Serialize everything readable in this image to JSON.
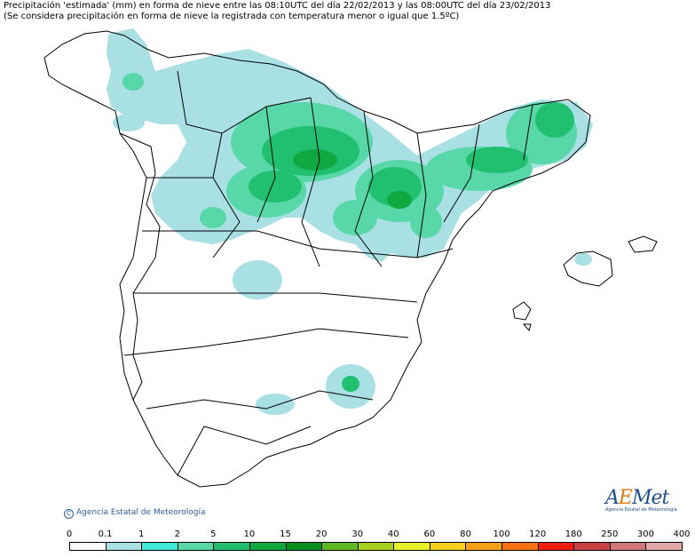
{
  "title": {
    "line1": "Precipitación 'estimada' (mm) en forma de nieve entre las 08:10UTC del día 22/02/2013 y las 08:00UTC del día 23/02/2013",
    "line2": "(Se considera precipitación en forma de nieve la registrada con temperatura menor o igual que 1.5ºC)"
  },
  "credit": "Agencia Estatal de Meteorología",
  "credit_symbol": "C",
  "logo": {
    "word_a": "A",
    "word_e": "E",
    "word_met": "Met",
    "subtitle": "Agencia Estatal de Meteorología"
  },
  "legend": {
    "ticks": [
      "0",
      "0.1",
      "1",
      "2",
      "5",
      "10",
      "15",
      "20",
      "30",
      "40",
      "60",
      "80",
      "100",
      "120",
      "180",
      "250",
      "300",
      "400"
    ],
    "colors": [
      "#ffffff",
      "#a8e0e4",
      "#40e8d8",
      "#58d8a8",
      "#20c070",
      "#10a840",
      "#0a9020",
      "#60b820",
      "#a8d020",
      "#e8f028",
      "#f8d020",
      "#f8a018",
      "#f87010",
      "#f02010",
      "#c84040",
      "#d07878",
      "#e0a8a8"
    ]
  },
  "snow_colors": {
    "light": "#a8e0e4",
    "mid": "#58d8a8",
    "high": "#20c070",
    "peak": "#10a840",
    "trace": "#40e8d8"
  }
}
